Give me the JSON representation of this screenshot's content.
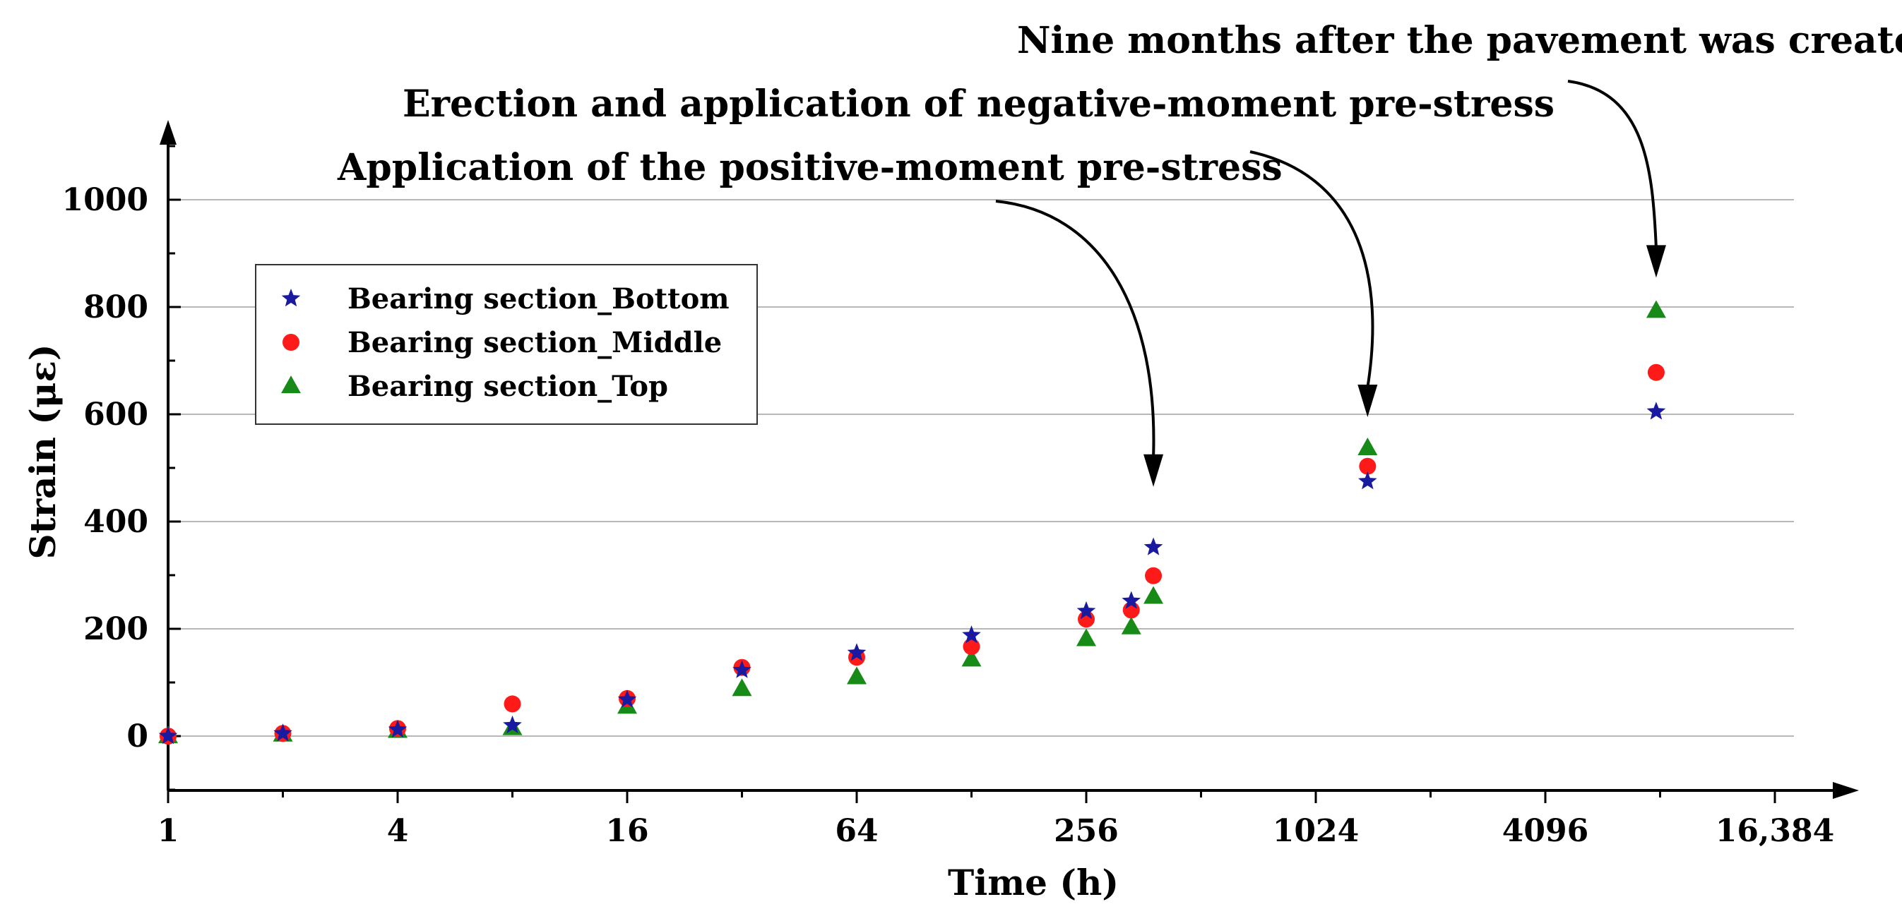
{
  "chart_data": {
    "type": "scatter",
    "title": "",
    "xlabel": "Time (h)",
    "ylabel": "Strain (με)",
    "x_scale": "log2",
    "xlim": [
      1,
      16384
    ],
    "ylim": [
      -100,
      1100
    ],
    "x_ticks": [
      {
        "value": 1,
        "label": "1"
      },
      {
        "value": 4,
        "label": "4"
      },
      {
        "value": 16,
        "label": "16"
      },
      {
        "value": 64,
        "label": "64"
      },
      {
        "value": 256,
        "label": "256"
      },
      {
        "value": 1024,
        "label": "1024"
      },
      {
        "value": 4096,
        "label": "4096"
      },
      {
        "value": 16384,
        "label": "16,384"
      }
    ],
    "y_ticks": [
      0,
      200,
      400,
      600,
      800,
      1000
    ],
    "grid": "horizontal",
    "legend_position": "top-left",
    "series": [
      {
        "name": "Bearing section_Bottom",
        "marker": "star",
        "color": "#1a1aa0",
        "points": [
          [
            1,
            0
          ],
          [
            2,
            5
          ],
          [
            4,
            12
          ],
          [
            8,
            20
          ],
          [
            16,
            68
          ],
          [
            32,
            123
          ],
          [
            64,
            155
          ],
          [
            128,
            188
          ],
          [
            256,
            233
          ],
          [
            336,
            252
          ],
          [
            384,
            352
          ],
          [
            1400,
            475
          ],
          [
            8000,
            605
          ]
        ]
      },
      {
        "name": "Bearing section_Middle",
        "marker": "circle",
        "color": "#ff1a1a",
        "points": [
          [
            1,
            0
          ],
          [
            2,
            5
          ],
          [
            4,
            14
          ],
          [
            8,
            60
          ],
          [
            16,
            70
          ],
          [
            32,
            128
          ],
          [
            64,
            147
          ],
          [
            128,
            167
          ],
          [
            256,
            218
          ],
          [
            336,
            235
          ],
          [
            384,
            299
          ],
          [
            1400,
            503
          ],
          [
            8000,
            678
          ]
        ]
      },
      {
        "name": "Bearing section_Top",
        "marker": "triangle",
        "color": "#178a17",
        "points": [
          [
            1,
            0
          ],
          [
            2,
            3
          ],
          [
            4,
            10
          ],
          [
            8,
            15
          ],
          [
            16,
            55
          ],
          [
            32,
            88
          ],
          [
            64,
            110
          ],
          [
            128,
            143
          ],
          [
            256,
            181
          ],
          [
            336,
            203
          ],
          [
            384,
            260
          ],
          [
            1400,
            537
          ],
          [
            8000,
            793
          ]
        ]
      }
    ],
    "annotations": [
      {
        "text": "Application of the positive-moment pre-stress",
        "target": [
          384,
          470
        ]
      },
      {
        "text": "Erection and application of negative-moment pre-stress",
        "target": [
          1400,
          600
        ]
      },
      {
        "text": "Nine months after the pavement was created",
        "target": [
          8000,
          860
        ]
      }
    ]
  }
}
